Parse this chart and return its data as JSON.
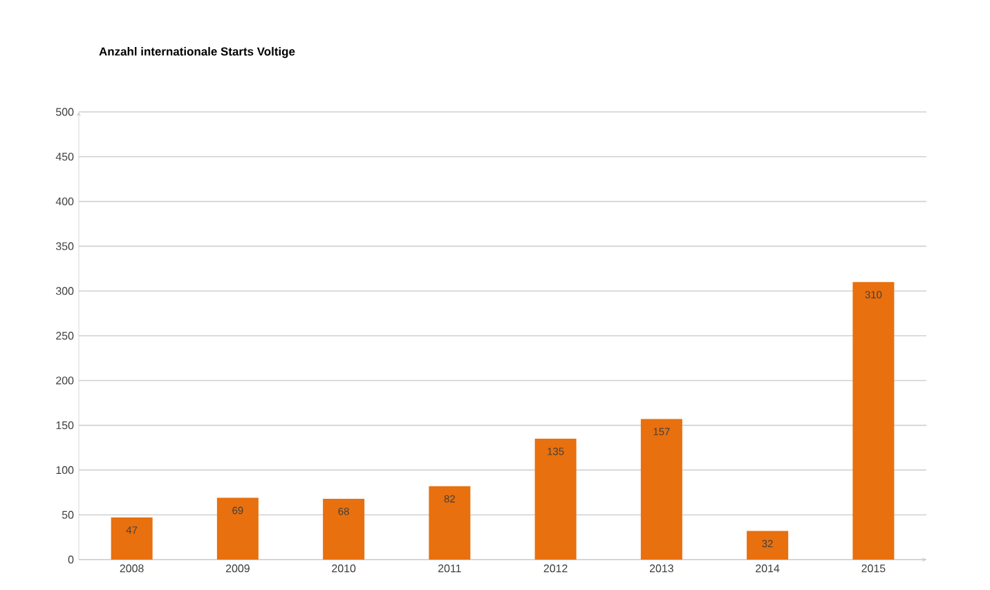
{
  "chart_data": {
    "type": "bar",
    "title": "Anzahl internationale Starts Voltige",
    "categories": [
      "2008",
      "2009",
      "2010",
      "2011",
      "2012",
      "2013",
      "2014",
      "2015"
    ],
    "values": [
      47,
      69,
      68,
      82,
      135,
      157,
      32,
      310
    ],
    "color": "#e8700e",
    "ylim": [
      0,
      500
    ],
    "yticks": [
      0,
      50,
      100,
      150,
      200,
      250,
      300,
      350,
      400,
      450,
      500
    ],
    "grid": "y",
    "data_labels": true
  }
}
